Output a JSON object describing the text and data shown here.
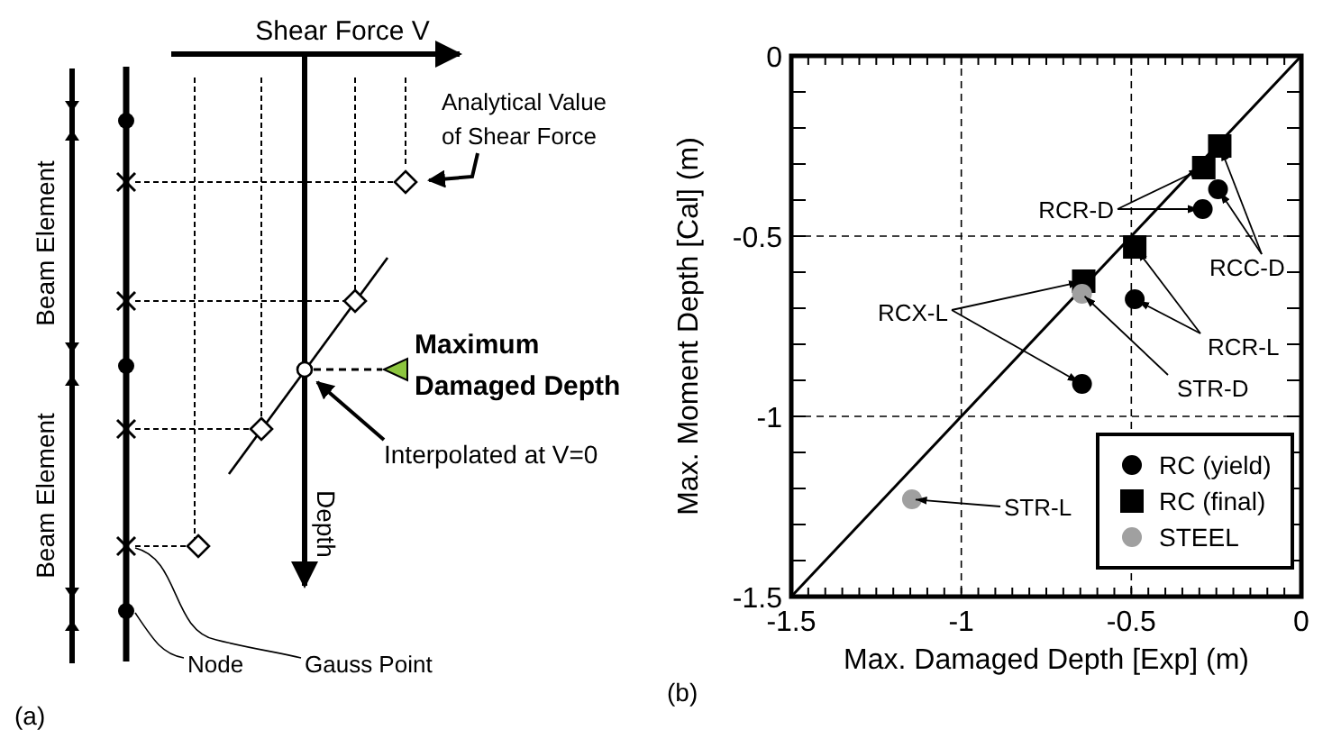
{
  "chart_data": [
    {
      "type": "other",
      "annotations": [
        "Shear Force V",
        "Analytical Value of Shear Force",
        "Maximum Damaged Depth",
        "Interpolated at V=0",
        "Depth",
        "Beam Element",
        "Beam Element",
        "Node",
        "Gauss Point",
        "(a)"
      ]
    },
    {
      "type": "scatter",
      "xlabel": "Max. Damaged Depth [Exp] (m)",
      "ylabel": "Max. Moment Depth [Cal] (m)",
      "xlim": [
        -1.5,
        0
      ],
      "ylim": [
        -1.5,
        0
      ],
      "xticks": [
        -1.5,
        {
          "value": -1.45,
          "label": null
        },
        {
          "value": -1.4,
          "label": null
        },
        {
          "value": -1.35,
          "label": null
        },
        {
          "value": -1.3,
          "label": null
        },
        {
          "value": -1.25,
          "label": null
        },
        {
          "value": -1.2,
          "label": null
        },
        {
          "value": -1.15,
          "label": null
        },
        {
          "value": -1.1,
          "label": null
        },
        {
          "value": -1.05,
          "label": null
        },
        -1,
        {
          "value": -0.95,
          "label": null
        },
        {
          "value": -0.9,
          "label": null
        },
        {
          "value": -0.85,
          "label": null
        },
        {
          "value": -0.8,
          "label": null
        },
        {
          "value": -0.75,
          "label": null
        },
        {
          "value": -0.7,
          "label": null
        },
        {
          "value": -0.65,
          "label": null
        },
        {
          "value": -0.6,
          "label": null
        },
        {
          "value": -0.55,
          "label": null
        },
        -0.5,
        {
          "value": -0.45,
          "label": null
        },
        {
          "value": -0.4,
          "label": null
        },
        {
          "value": -0.35,
          "label": null
        },
        {
          "value": -0.3,
          "label": null
        },
        {
          "value": -0.25,
          "label": null
        },
        {
          "value": -0.2,
          "label": null
        },
        {
          "value": -0.15,
          "label": null
        },
        {
          "value": -0.1,
          "label": null
        },
        {
          "value": -0.05,
          "label": null
        },
        0
      ],
      "yticks": [
        -1.5,
        {
          "value": -1.4,
          "label": null
        },
        {
          "value": -1.3,
          "label": null
        },
        {
          "value": -1.2,
          "label": null
        },
        {
          "value": -1.1,
          "label": null
        },
        -1,
        {
          "value": -0.9,
          "label": null
        },
        {
          "value": -0.8,
          "label": null
        },
        {
          "value": -0.7,
          "label": null
        },
        {
          "value": -0.6,
          "label": null
        },
        -0.5,
        {
          "value": -0.4,
          "label": null
        },
        {
          "value": -0.3,
          "label": null
        },
        {
          "value": -0.2,
          "label": null
        },
        {
          "value": -0.1,
          "label": null
        },
        0
      ],
      "grid": true,
      "legend": "bottom right",
      "series": [
        {
          "type": "line",
          "color": "#000000",
          "marker": "none",
          "x": [
            -1.5,
            0
          ],
          "values": [
            -1.5,
            0
          ]
        },
        {
          "name": "RC (yield)",
          "color": "#000000",
          "marker": "circle",
          "x": [
            -0.245,
            -0.29,
            -0.49,
            -0.645
          ],
          "values": [
            -0.37,
            -0.425,
            -0.675,
            -0.91
          ]
        },
        {
          "name": "RC (final)",
          "color": "#000000",
          "marker": "square",
          "x": [
            -0.24,
            -0.287,
            -0.49,
            -0.64
          ],
          "values": [
            -0.25,
            -0.31,
            -0.53,
            -0.625
          ]
        },
        {
          "name": "STEEL",
          "color": "#a0a0a0",
          "marker": "circle",
          "x": [
            -0.645,
            -1.145
          ],
          "values": [
            -0.66,
            -1.23
          ]
        }
      ],
      "annotations": [
        {
          "text": "RCR-D",
          "x": -0.287,
          "y": -0.31
        },
        {
          "text": "RCC-D",
          "x": -0.24,
          "y": -0.25
        },
        {
          "text": "RCR-L",
          "x": -0.49,
          "y": -0.53
        },
        {
          "text": "RCX-L",
          "x": -0.64,
          "y": -0.625
        },
        {
          "text": "STR-D",
          "x": -0.645,
          "y": -0.66
        },
        "STR-L",
        "(b)"
      ]
    }
  ]
}
